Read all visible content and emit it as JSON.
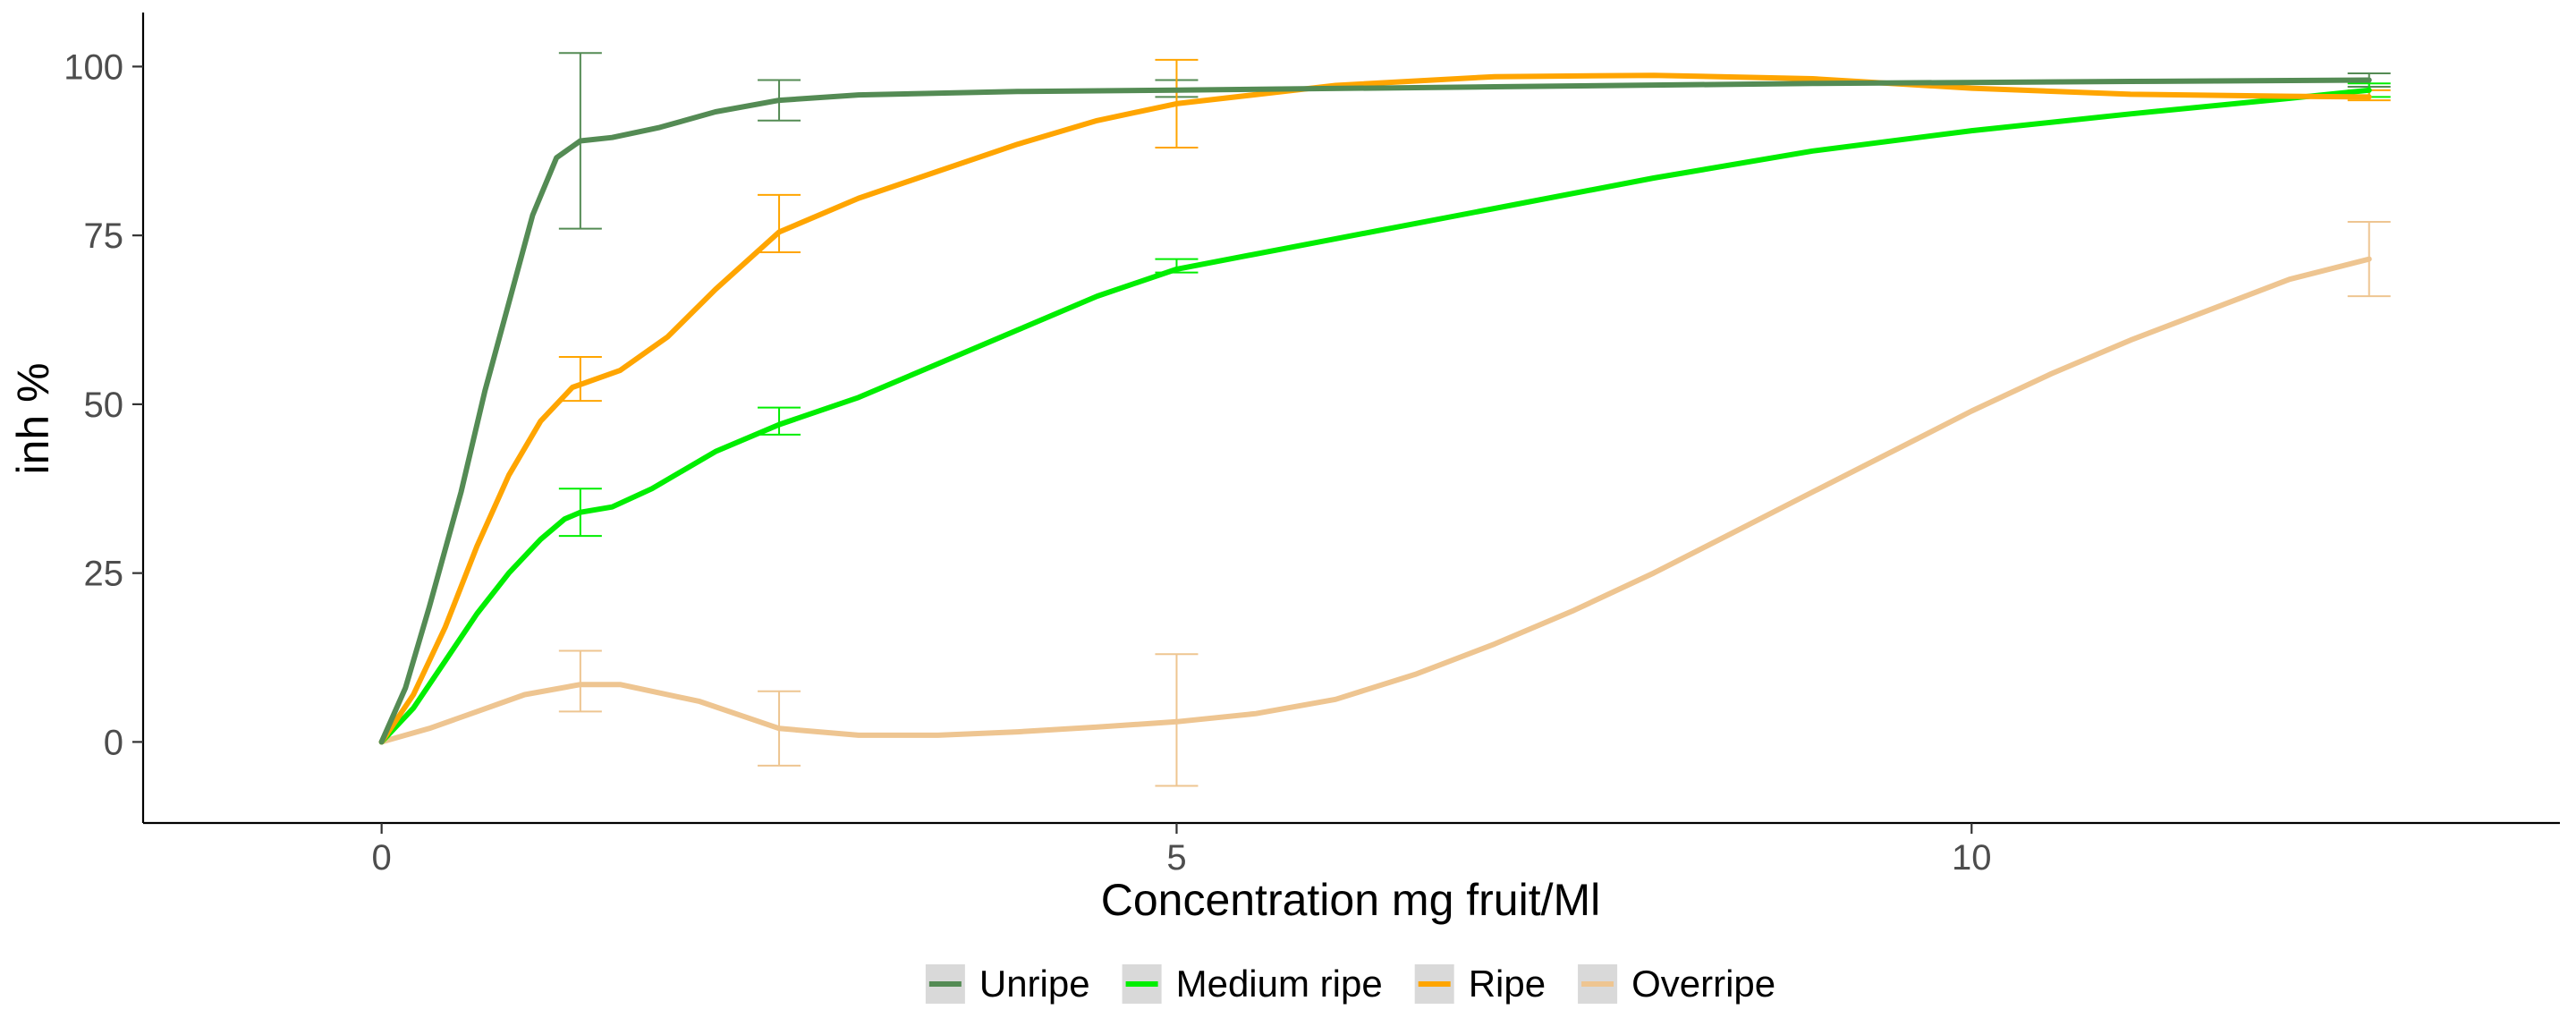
{
  "chart_data": {
    "type": "line",
    "title": "",
    "xlabel": "Concentration mg fruit/Ml",
    "ylabel": "inh %",
    "xlim": [
      -1.5,
      13.7
    ],
    "ylim": [
      -12,
      108
    ],
    "x_ticks": [
      0,
      5,
      10
    ],
    "x_tick_labels": [
      "0",
      "5",
      "10"
    ],
    "y_ticks": [
      0,
      25,
      50,
      75,
      100
    ],
    "y_tick_labels": [
      "0",
      "25",
      "50",
      "75",
      "100"
    ],
    "grid": false,
    "legend_position": "bottom",
    "x": [
      0,
      1.25,
      2.5,
      5,
      12.5
    ],
    "series": [
      {
        "name": "Unripe",
        "color": "#548B54",
        "values": [
          0,
          89,
          95,
          96.5,
          98
        ],
        "error_low": [
          0,
          76,
          92,
          95.5,
          97
        ],
        "error_high": [
          0,
          102,
          98,
          98,
          99
        ],
        "curve": [
          [
            0,
            0
          ],
          [
            0.15,
            8
          ],
          [
            0.3,
            20
          ],
          [
            0.5,
            37
          ],
          [
            0.65,
            52
          ],
          [
            0.8,
            65
          ],
          [
            0.95,
            78
          ],
          [
            1.1,
            86.5
          ],
          [
            1.25,
            89
          ],
          [
            1.45,
            89.5
          ],
          [
            1.75,
            91
          ],
          [
            2.1,
            93.3
          ],
          [
            2.5,
            95
          ],
          [
            3,
            95.8
          ],
          [
            4,
            96.3
          ],
          [
            5,
            96.5
          ],
          [
            7,
            97
          ],
          [
            9,
            97.5
          ],
          [
            11,
            97.8
          ],
          [
            12.5,
            98
          ]
        ]
      },
      {
        "name": "Medium ripe",
        "color": "#00EE00",
        "values": [
          0,
          34,
          47.5,
          70.5,
          96.5
        ],
        "error_low": [
          0,
          30.5,
          45.5,
          69.5,
          95.5
        ],
        "error_high": [
          0,
          37.5,
          49.5,
          71.5,
          97.5
        ],
        "curve": [
          [
            0,
            0
          ],
          [
            0.2,
            5
          ],
          [
            0.4,
            12
          ],
          [
            0.6,
            19
          ],
          [
            0.8,
            25
          ],
          [
            1.0,
            30
          ],
          [
            1.15,
            33
          ],
          [
            1.25,
            34
          ],
          [
            1.45,
            34.8
          ],
          [
            1.7,
            37.5
          ],
          [
            2.1,
            43
          ],
          [
            2.5,
            47
          ],
          [
            3,
            51
          ],
          [
            3.5,
            56
          ],
          [
            4,
            61
          ],
          [
            4.5,
            66
          ],
          [
            5,
            70
          ],
          [
            6,
            74.5
          ],
          [
            7,
            79
          ],
          [
            8,
            83.5
          ],
          [
            9,
            87.5
          ],
          [
            10,
            90.5
          ],
          [
            11,
            93
          ],
          [
            12,
            95.3
          ],
          [
            12.5,
            96.5
          ]
        ]
      },
      {
        "name": "Ripe",
        "color": "#FFA500",
        "values": [
          0,
          54,
          76.5,
          94.5,
          95.5
        ],
        "error_low": [
          0,
          50.5,
          72.5,
          88,
          95
        ],
        "error_high": [
          0,
          57,
          81,
          101,
          96.5
        ],
        "curve": [
          [
            0,
            0
          ],
          [
            0.2,
            7
          ],
          [
            0.4,
            17
          ],
          [
            0.6,
            29
          ],
          [
            0.8,
            39.5
          ],
          [
            1.0,
            47.5
          ],
          [
            1.2,
            52.5
          ],
          [
            1.5,
            55
          ],
          [
            1.8,
            60
          ],
          [
            2.1,
            67
          ],
          [
            2.5,
            75.5
          ],
          [
            3,
            80.5
          ],
          [
            3.5,
            84.5
          ],
          [
            4,
            88.5
          ],
          [
            4.5,
            92
          ],
          [
            5,
            94.5
          ],
          [
            6,
            97.2
          ],
          [
            7,
            98.5
          ],
          [
            8,
            98.7
          ],
          [
            9,
            98.2
          ],
          [
            10,
            96.8
          ],
          [
            11,
            95.9
          ],
          [
            12,
            95.6
          ],
          [
            12.5,
            95.5
          ]
        ]
      },
      {
        "name": "Overripe",
        "color": "#EEC591",
        "values": [
          0,
          8.5,
          2,
          3,
          71.5
        ],
        "error_low": [
          0,
          4.5,
          -3.5,
          -6.5,
          66
        ],
        "error_high": [
          0,
          13.5,
          7.5,
          13,
          77
        ],
        "curve": [
          [
            0,
            0
          ],
          [
            0.3,
            2
          ],
          [
            0.6,
            4.5
          ],
          [
            0.9,
            7
          ],
          [
            1.25,
            8.5
          ],
          [
            1.5,
            8.5
          ],
          [
            2,
            6
          ],
          [
            2.5,
            2
          ],
          [
            3,
            1
          ],
          [
            3.5,
            1
          ],
          [
            4,
            1.5
          ],
          [
            4.5,
            2.2
          ],
          [
            5,
            3
          ],
          [
            5.5,
            4.2
          ],
          [
            6,
            6.3
          ],
          [
            6.5,
            10
          ],
          [
            7,
            14.5
          ],
          [
            7.5,
            19.5
          ],
          [
            8,
            25
          ],
          [
            8.5,
            31
          ],
          [
            9,
            37
          ],
          [
            9.5,
            43
          ],
          [
            10,
            49
          ],
          [
            10.5,
            54.5
          ],
          [
            11,
            59.5
          ],
          [
            11.5,
            64
          ],
          [
            12,
            68.5
          ],
          [
            12.5,
            71.5
          ]
        ]
      }
    ]
  }
}
